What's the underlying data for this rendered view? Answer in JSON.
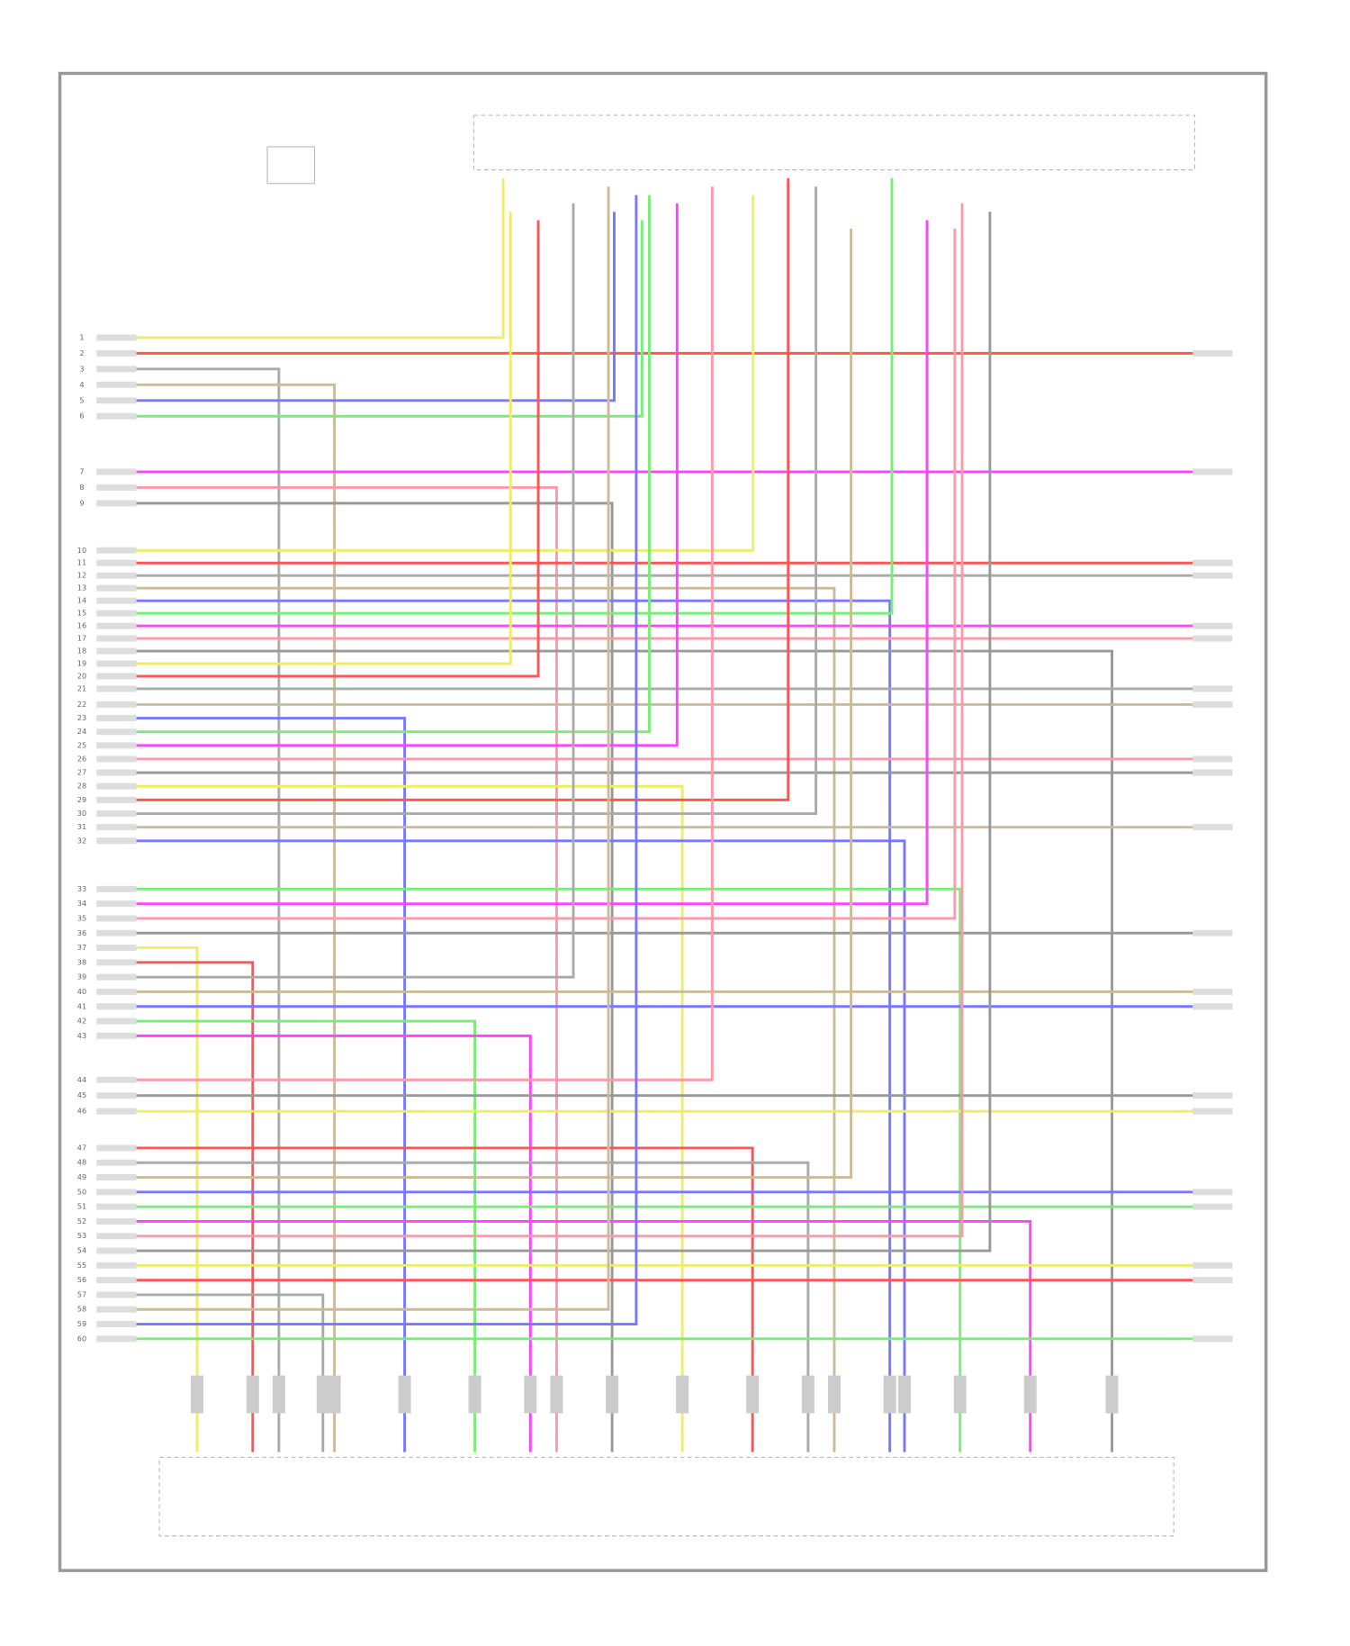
{
  "diagram": {
    "left_pins": [
      [
        1,
        2,
        3,
        4,
        5,
        6
      ],
      [
        7,
        8,
        9
      ],
      [
        10,
        11,
        12,
        13,
        14,
        15,
        16,
        17,
        18,
        19,
        20,
        21
      ],
      [
        22,
        23,
        24,
        25,
        26,
        27,
        28,
        29,
        30,
        31,
        32
      ],
      [
        33,
        34,
        35,
        36,
        37,
        38,
        39,
        40,
        41,
        42,
        43
      ],
      [
        44,
        45,
        46
      ],
      [
        47,
        48,
        49,
        50,
        51,
        52,
        53,
        54,
        55,
        56,
        57,
        58,
        59,
        60
      ]
    ]
  }
}
